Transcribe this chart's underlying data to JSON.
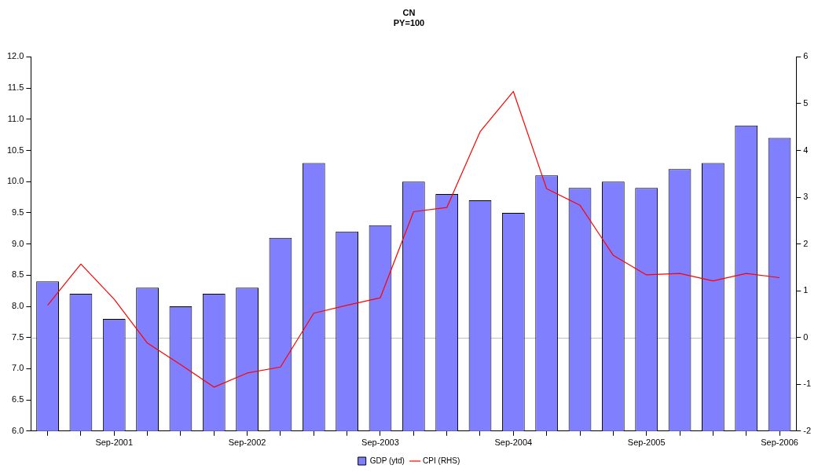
{
  "chart_data": {
    "type": "bar",
    "title": "CN",
    "subtitle": "PY=100",
    "categories": [
      null,
      null,
      "Sep-2001",
      null,
      null,
      null,
      "Sep-2002",
      null,
      null,
      null,
      "Sep-2003",
      null,
      null,
      null,
      "Sep-2004",
      null,
      null,
      null,
      "Sep-2005",
      null,
      null,
      null,
      "Sep-2006"
    ],
    "series": [
      {
        "name": "GDP (ytd)",
        "color": "#8080ff",
        "values": [
          8.4,
          8.2,
          7.8,
          8.3,
          8.0,
          8.2,
          8.3,
          9.1,
          10.3,
          9.2,
          9.3,
          10.0,
          9.8,
          9.7,
          9.5,
          10.1,
          9.9,
          10.0,
          9.9,
          10.2,
          10.3,
          10.9,
          10.7
        ]
      },
      {
        "name": "CPI (RHS)",
        "type": "line",
        "axis": "y2",
        "color": "#ff0000",
        "values": [
          0.69,
          1.57,
          0.82,
          -0.12,
          -0.58,
          -1.06,
          -0.76,
          -0.63,
          0.52,
          0.69,
          0.85,
          2.69,
          2.78,
          4.4,
          5.26,
          3.18,
          2.83,
          1.76,
          1.34,
          1.37,
          1.21,
          1.37,
          1.28
        ]
      }
    ],
    "ylim": [
      6.0,
      12.0
    ],
    "yticks": [
      {
        "value": 6,
        "label": "6.0"
      },
      {
        "value": 6.5,
        "label": "6.5"
      },
      {
        "value": 7,
        "label": "7.0"
      },
      {
        "value": 7.5,
        "label": "7.5"
      },
      {
        "value": 8,
        "label": "8.0"
      },
      {
        "value": 8.5,
        "label": "8.5"
      },
      {
        "value": 9,
        "label": "9.0"
      },
      {
        "value": 9.5,
        "label": "9.5"
      },
      {
        "value": 10,
        "label": "10.0"
      },
      {
        "value": 10.5,
        "label": "10.5"
      },
      {
        "value": 11,
        "label": "11.0"
      },
      {
        "value": 11.5,
        "label": "11.5"
      },
      {
        "value": 12,
        "label": "12.0"
      }
    ],
    "y2lim": [
      -2,
      6
    ],
    "y2ticks": [
      -2,
      -1,
      0,
      1,
      2,
      3,
      4,
      5,
      6
    ],
    "ref_lines": [
      {
        "axis": "y2",
        "value": 0,
        "color": "#c0c0c0"
      }
    ],
    "grid": false,
    "legend": "bottom",
    "marker": "none",
    "line_style": "solid"
  }
}
